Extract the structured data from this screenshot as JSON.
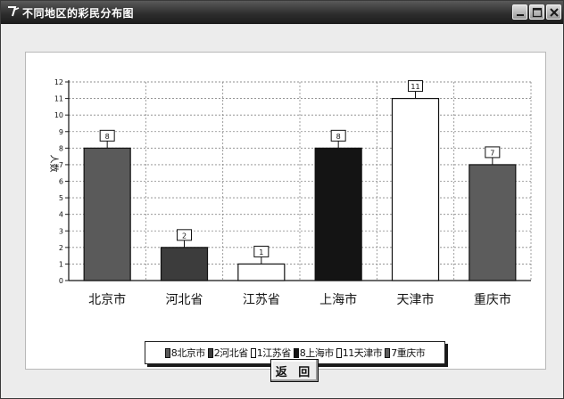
{
  "window": {
    "title": "不同地区的彩民分布图",
    "icon": "app-icon",
    "controls": [
      "minimize-icon",
      "maximize-icon",
      "close-icon"
    ]
  },
  "chart_data": {
    "type": "bar",
    "categories": [
      "北京市",
      "河北省",
      "江苏省",
      "上海市",
      "天津市",
      "重庆市"
    ],
    "values": [
      8,
      2,
      1,
      8,
      11,
      7
    ],
    "colors": [
      "#5a5a5a",
      "#3c3c3c",
      "#ffffff",
      "#141414",
      "#ffffff",
      "#5c5c5c"
    ],
    "title": "",
    "xlabel": "",
    "ylabel": "人数",
    "ylim": [
      0,
      12
    ],
    "yticks": [
      0,
      1,
      2,
      3,
      4,
      5,
      6,
      7,
      8,
      9,
      10,
      11,
      12
    ],
    "grid": true,
    "legend_position": "bottom",
    "legend": [
      "8北京市",
      "2河北省",
      "1江苏省",
      "8上海市",
      "11天津市",
      "7重庆市"
    ]
  },
  "buttons": {
    "return_label": "返 回"
  }
}
